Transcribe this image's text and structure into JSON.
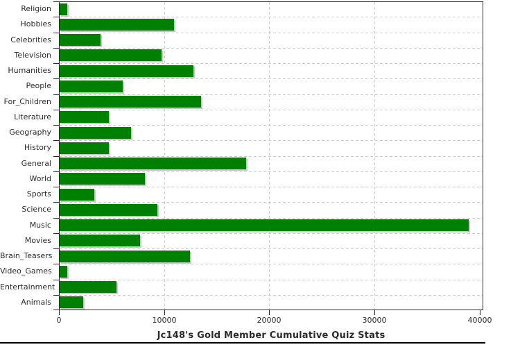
{
  "chart_data": {
    "type": "bar",
    "orientation": "horizontal",
    "title": "Jc148's Gold Member Cumulative Quiz Stats",
    "categories": [
      "Religion",
      "Hobbies",
      "Celebrities",
      "Television",
      "Humanities",
      "People",
      "For_Children",
      "Literature",
      "Geography",
      "History",
      "General",
      "World",
      "Sports",
      "Science",
      "Music",
      "Movies",
      "Brain_Teasers",
      "Video_Games",
      "Entertainment",
      "Animals"
    ],
    "values": [
      700,
      10900,
      3900,
      9700,
      12700,
      6000,
      13450,
      4700,
      6800,
      4650,
      17750,
      8100,
      3300,
      9300,
      38900,
      7650,
      12400,
      700,
      5400,
      2250
    ],
    "xlim": [
      0,
      40000
    ],
    "x_ticks": [
      0,
      10000,
      20000,
      30000,
      40000
    ],
    "x_tick_labels": [
      "0",
      "10000",
      "20000",
      "30000",
      "40000"
    ],
    "grid": "dashed, horizontal row separators and vertical value lines",
    "legend": "none",
    "colors": {
      "bar": "#008000",
      "bar_shadow": "#c9c9c9",
      "gridline": "#cdcdcd",
      "axis": "#2b2b2b",
      "text": "#2b2b2b",
      "background": "#ffffff"
    }
  }
}
